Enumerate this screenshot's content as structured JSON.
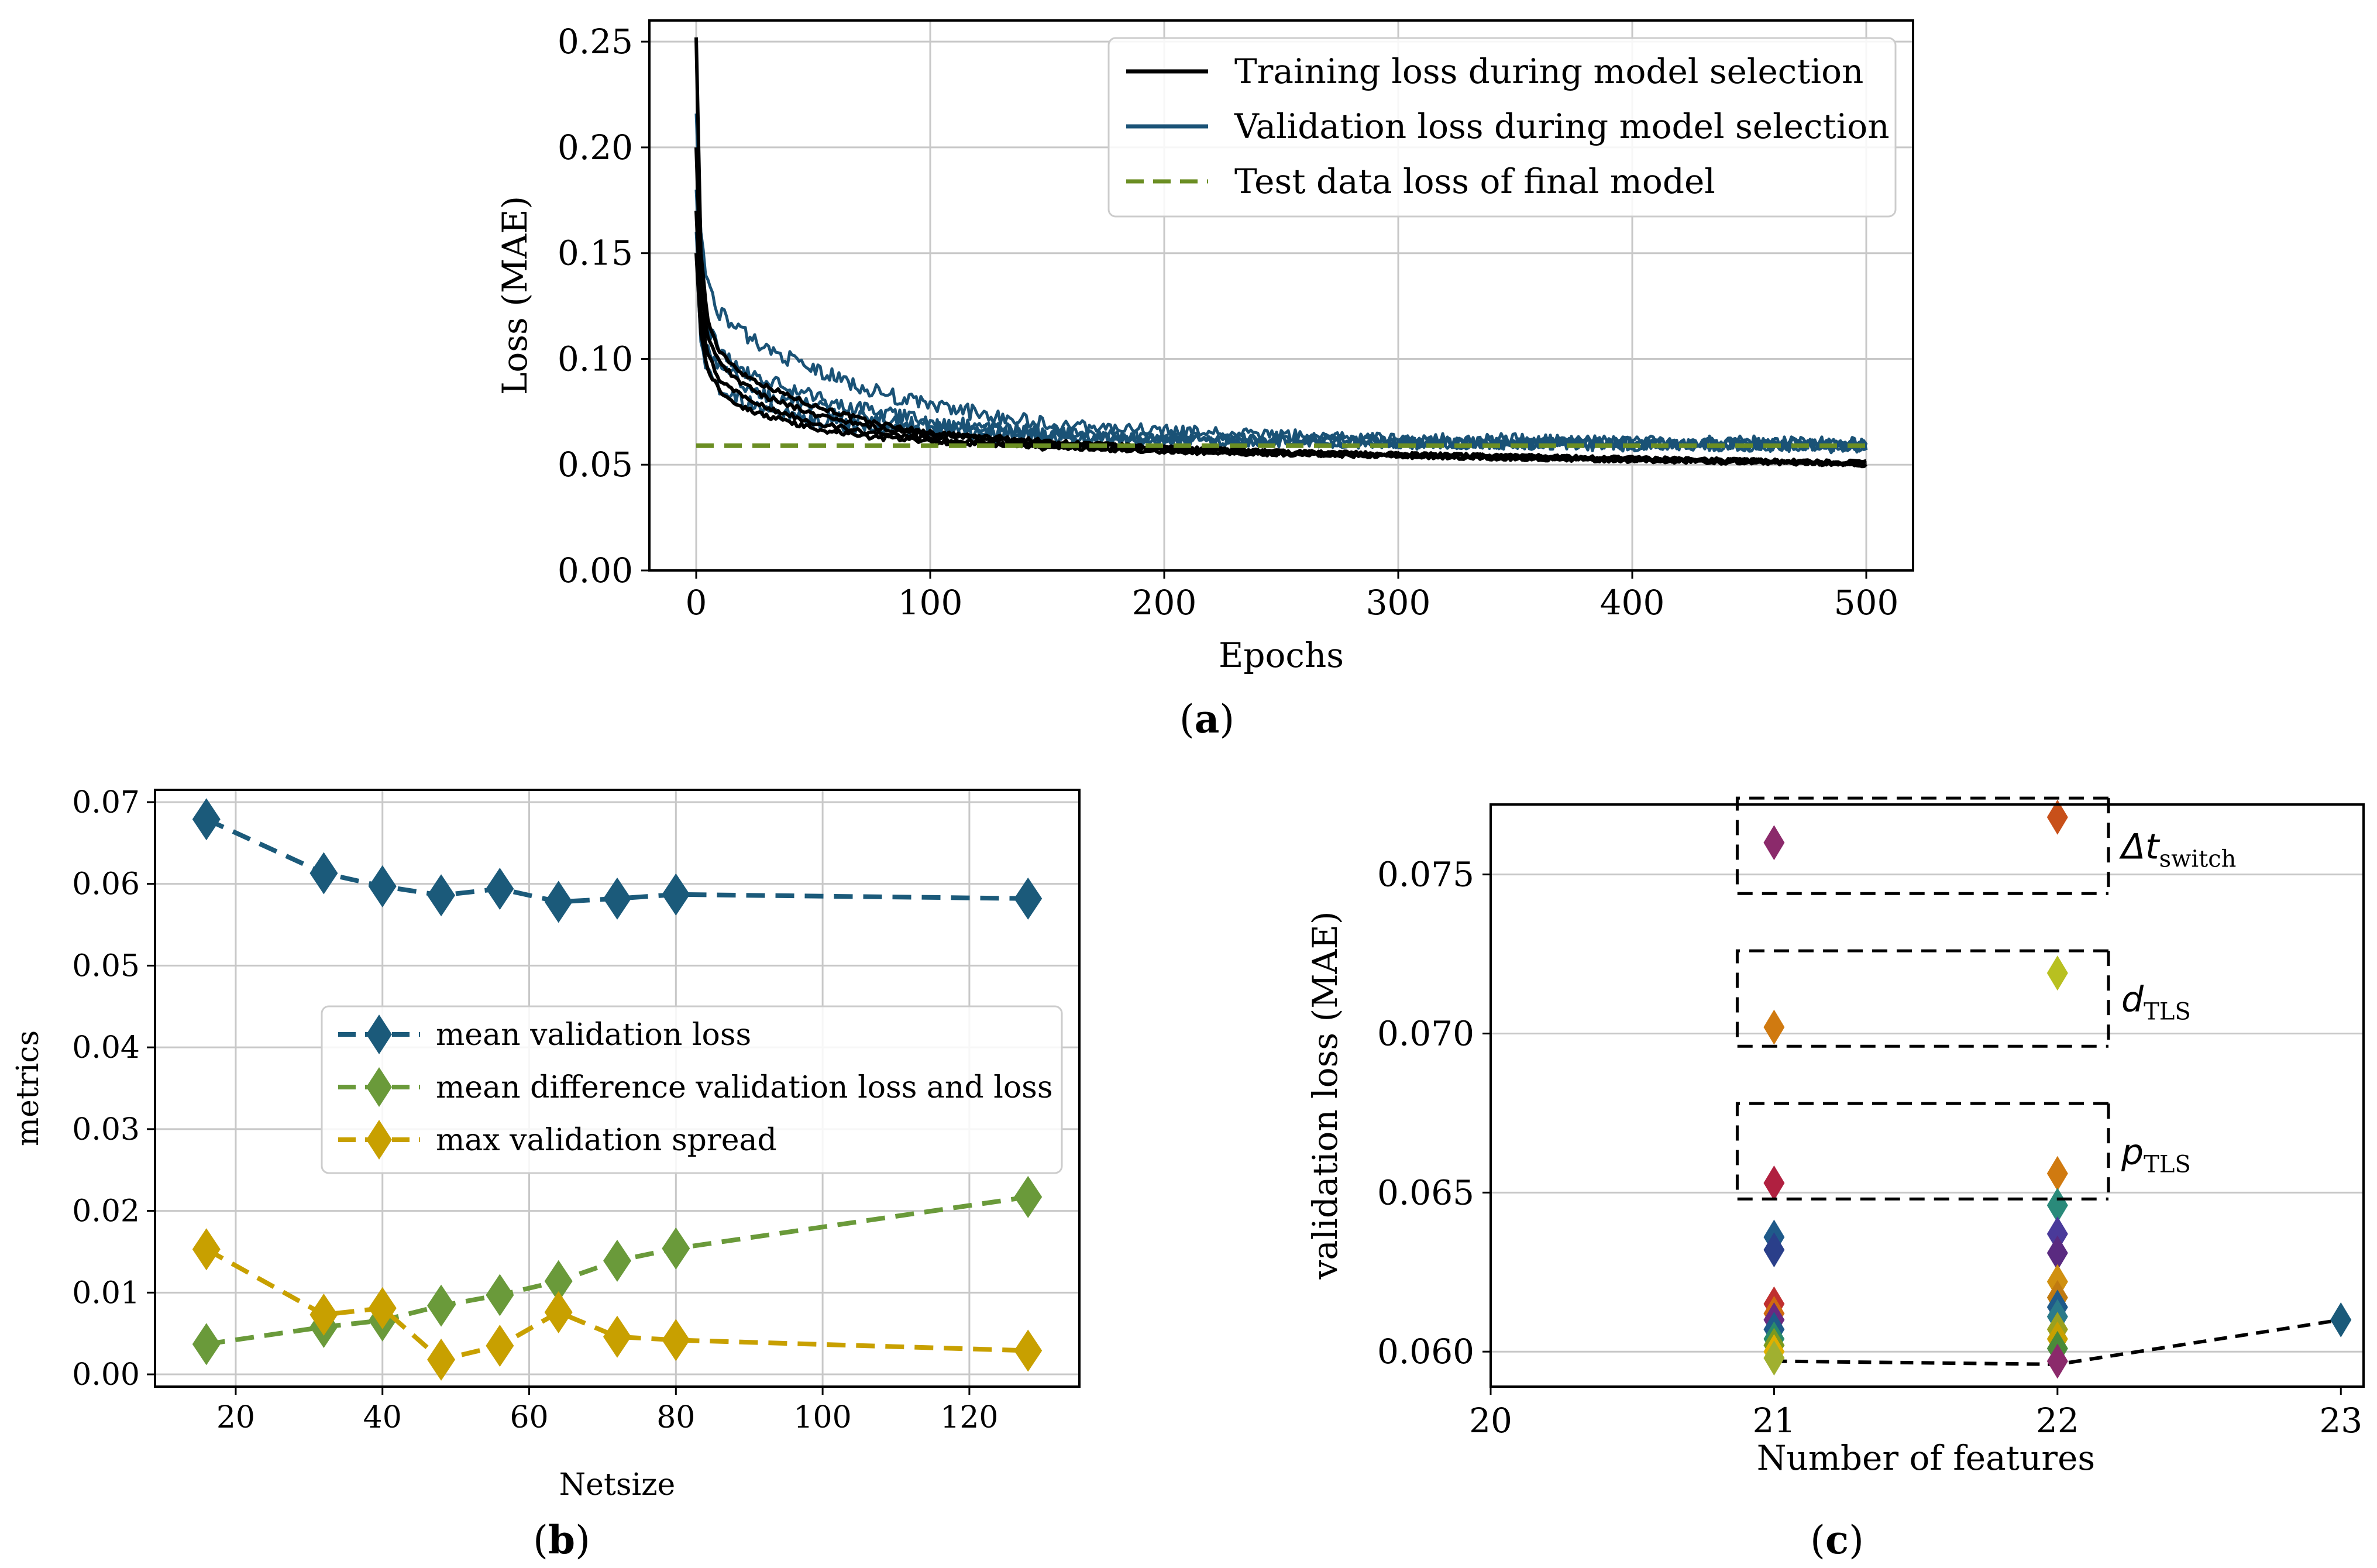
{
  "panels": {
    "a": {
      "caption": "(a)",
      "caption_letter": "a",
      "chart_data": {
        "type": "line",
        "title": "",
        "xlabel": "Epochs",
        "ylabel": "Loss (MAE)",
        "xlim": [
          -20,
          520
        ],
        "ylim": [
          0.0,
          0.26
        ],
        "xticks": [
          0,
          100,
          200,
          300,
          400,
          500
        ],
        "xtick_labels": [
          "0",
          "100",
          "200",
          "300",
          "400",
          "500"
        ],
        "yticks": [
          0.0,
          0.05,
          0.1,
          0.15,
          0.2,
          0.25
        ],
        "ytick_labels": [
          "0.00",
          "0.05",
          "0.10",
          "0.15",
          "0.20",
          "0.25"
        ],
        "grid": true,
        "legend_position": "top-right",
        "series": [
          {
            "name": "Training loss during model selection",
            "color": "#000000",
            "style": "solid",
            "runs": [
              {
                "x": [
                  0,
                  2,
                  5,
                  10,
                  20,
                  30,
                  50,
                  75,
                  100,
                  150,
                  200,
                  250,
                  300,
                  350,
                  400,
                  450,
                  500
                ],
                "y": [
                  0.252,
                  0.15,
                  0.118,
                  0.103,
                  0.093,
                  0.087,
                  0.078,
                  0.07,
                  0.065,
                  0.061,
                  0.058,
                  0.056,
                  0.055,
                  0.054,
                  0.053,
                  0.052,
                  0.05
                ]
              },
              {
                "x": [
                  0,
                  2,
                  5,
                  10,
                  20,
                  30,
                  50,
                  75,
                  100,
                  150,
                  200,
                  250,
                  300,
                  350,
                  400,
                  450,
                  500
                ],
                "y": [
                  0.2,
                  0.135,
                  0.11,
                  0.098,
                  0.088,
                  0.082,
                  0.074,
                  0.068,
                  0.064,
                  0.06,
                  0.058,
                  0.056,
                  0.055,
                  0.054,
                  0.053,
                  0.052,
                  0.051
                ]
              },
              {
                "x": [
                  0,
                  2,
                  5,
                  10,
                  20,
                  30,
                  50,
                  75,
                  100,
                  150,
                  200,
                  250,
                  300,
                  350,
                  400,
                  450,
                  500
                ],
                "y": [
                  0.17,
                  0.122,
                  0.102,
                  0.09,
                  0.082,
                  0.077,
                  0.07,
                  0.065,
                  0.062,
                  0.059,
                  0.057,
                  0.055,
                  0.054,
                  0.053,
                  0.052,
                  0.052,
                  0.05
                ]
              },
              {
                "x": [
                  0,
                  2,
                  5,
                  10,
                  20,
                  30,
                  50,
                  75,
                  100,
                  150,
                  200,
                  250,
                  300,
                  350,
                  400,
                  450,
                  500
                ],
                "y": [
                  0.15,
                  0.112,
                  0.095,
                  0.085,
                  0.077,
                  0.073,
                  0.067,
                  0.063,
                  0.061,
                  0.058,
                  0.056,
                  0.055,
                  0.054,
                  0.053,
                  0.052,
                  0.051,
                  0.05
                ]
              }
            ]
          },
          {
            "name": "Validation loss during model selection",
            "color": "#1a5276",
            "style": "solid",
            "runs": [
              {
                "x": [
                  0,
                  2,
                  5,
                  10,
                  20,
                  30,
                  50,
                  75,
                  100,
                  150,
                  200,
                  250,
                  300,
                  350,
                  400,
                  450,
                  500
                ],
                "y": [
                  0.216,
                  0.16,
                  0.135,
                  0.122,
                  0.112,
                  0.105,
                  0.095,
                  0.085,
                  0.078,
                  0.069,
                  0.066,
                  0.064,
                  0.062,
                  0.062,
                  0.061,
                  0.061,
                  0.06
                ]
              },
              {
                "x": [
                  0,
                  2,
                  5,
                  10,
                  20,
                  30,
                  50,
                  75,
                  100,
                  150,
                  200,
                  250,
                  300,
                  350,
                  400,
                  450,
                  500
                ],
                "y": [
                  0.18,
                  0.135,
                  0.115,
                  0.104,
                  0.095,
                  0.09,
                  0.082,
                  0.075,
                  0.07,
                  0.065,
                  0.063,
                  0.062,
                  0.061,
                  0.06,
                  0.06,
                  0.06,
                  0.059
                ]
              },
              {
                "x": [
                  0,
                  2,
                  5,
                  10,
                  20,
                  30,
                  50,
                  75,
                  100,
                  150,
                  200,
                  250,
                  300,
                  350,
                  400,
                  450,
                  500
                ],
                "y": [
                  0.16,
                  0.12,
                  0.105,
                  0.097,
                  0.088,
                  0.083,
                  0.077,
                  0.072,
                  0.068,
                  0.064,
                  0.062,
                  0.061,
                  0.06,
                  0.06,
                  0.06,
                  0.059,
                  0.059
                ]
              },
              {
                "x": [
                  0,
                  2,
                  5,
                  10,
                  20,
                  30,
                  50,
                  75,
                  100,
                  150,
                  200,
                  250,
                  300,
                  350,
                  400,
                  450,
                  500
                ],
                "y": [
                  0.15,
                  0.108,
                  0.095,
                  0.087,
                  0.08,
                  0.076,
                  0.071,
                  0.068,
                  0.066,
                  0.063,
                  0.062,
                  0.061,
                  0.06,
                  0.06,
                  0.059,
                  0.059,
                  0.058
                ]
              }
            ]
          },
          {
            "name": "Test data loss of final model",
            "color": "#6b8e23",
            "style": "dashed",
            "runs": [
              {
                "x": [
                  0,
                  500
                ],
                "y": [
                  0.059,
                  0.059
                ]
              }
            ]
          }
        ]
      }
    },
    "b": {
      "caption": "(b)",
      "caption_letter": "b",
      "chart_data": {
        "type": "line",
        "title": "",
        "xlabel": "Netsize",
        "ylabel": "metrics",
        "xlim": [
          9,
          135
        ],
        "ylim": [
          -0.0015,
          0.0715
        ],
        "xticks": [
          20,
          40,
          60,
          80,
          100,
          120
        ],
        "xtick_labels": [
          "20",
          "40",
          "60",
          "80",
          "100",
          "120"
        ],
        "yticks": [
          0.0,
          0.01,
          0.02,
          0.03,
          0.04,
          0.05,
          0.06,
          0.07
        ],
        "ytick_labels": [
          "0.00",
          "0.01",
          "0.02",
          "0.03",
          "0.04",
          "0.05",
          "0.06",
          "0.07"
        ],
        "grid": true,
        "legend_position": "center-right",
        "x": [
          16,
          32,
          40,
          48,
          56,
          64,
          72,
          80,
          128
        ],
        "series": [
          {
            "name": "mean validation loss",
            "color": "#1b5a7a",
            "values": [
              0.0679,
              0.0613,
              0.0597,
              0.0586,
              0.0594,
              0.0578,
              0.0582,
              0.0587,
              0.0582
            ]
          },
          {
            "name": "mean difference validation loss and loss",
            "color": "#6a9a3a",
            "values": [
              0.0037,
              0.0058,
              0.0066,
              0.0084,
              0.0097,
              0.0114,
              0.0139,
              0.0154,
              0.0217
            ]
          },
          {
            "name": "max validation spread",
            "color": "#c8a000",
            "values": [
              0.0153,
              0.0073,
              0.0081,
              0.0018,
              0.0035,
              0.0076,
              0.0046,
              0.0042,
              0.0029
            ]
          }
        ]
      }
    },
    "c": {
      "caption": "(c)",
      "caption_letter": "c",
      "chart_data": {
        "type": "scatter",
        "title": "",
        "xlabel": "Number of features",
        "ylabel": "validation loss (MAE)",
        "xlim": [
          20,
          23.08
        ],
        "ylim": [
          0.0589,
          0.0772
        ],
        "xticks": [
          20,
          21,
          22,
          23
        ],
        "xtick_labels": [
          "20",
          "21",
          "22",
          "23"
        ],
        "yticks": [
          0.06,
          0.065,
          0.07,
          0.075
        ],
        "ytick_labels": [
          "0.060",
          "0.065",
          "0.070",
          "0.075"
        ],
        "grid": "horizontal",
        "points": [
          {
            "x": 21,
            "y": 0.076,
            "color": "#8b2a6b"
          },
          {
            "x": 21,
            "y": 0.0702,
            "color": "#d07a10"
          },
          {
            "x": 21,
            "y": 0.0653,
            "color": "#b02040"
          },
          {
            "x": 21,
            "y": 0.0636,
            "color": "#1f5a8a"
          },
          {
            "x": 21,
            "y": 0.0632,
            "color": "#2a3f8a"
          },
          {
            "x": 21,
            "y": 0.0615,
            "color": "#c03030"
          },
          {
            "x": 21,
            "y": 0.0612,
            "color": "#d06a10"
          },
          {
            "x": 21,
            "y": 0.061,
            "color": "#6a2a80"
          },
          {
            "x": 21,
            "y": 0.0607,
            "color": "#1f5a8a"
          },
          {
            "x": 21,
            "y": 0.0604,
            "color": "#2a8a6a"
          },
          {
            "x": 21,
            "y": 0.0602,
            "color": "#7a9a20"
          },
          {
            "x": 21,
            "y": 0.06,
            "color": "#e0b000"
          },
          {
            "x": 21,
            "y": 0.0598,
            "color": "#a0b030"
          },
          {
            "x": 22,
            "y": 0.0768,
            "color": "#c8501a"
          },
          {
            "x": 22,
            "y": 0.0719,
            "color": "#b8c020"
          },
          {
            "x": 22,
            "y": 0.0656,
            "color": "#d07a10"
          },
          {
            "x": 22,
            "y": 0.0646,
            "color": "#2a8a7a"
          },
          {
            "x": 22,
            "y": 0.0637,
            "color": "#4a3a9a"
          },
          {
            "x": 22,
            "y": 0.0631,
            "color": "#5a2a80"
          },
          {
            "x": 22,
            "y": 0.0622,
            "color": "#d09010"
          },
          {
            "x": 22,
            "y": 0.0617,
            "color": "#c07a10"
          },
          {
            "x": 22,
            "y": 0.0614,
            "color": "#1f5a8a"
          },
          {
            "x": 22,
            "y": 0.0611,
            "color": "#2a7a8a"
          },
          {
            "x": 22,
            "y": 0.0607,
            "color": "#9aa020"
          },
          {
            "x": 22,
            "y": 0.0604,
            "color": "#c8a000"
          },
          {
            "x": 22,
            "y": 0.0601,
            "color": "#4a8a3a"
          },
          {
            "x": 22,
            "y": 0.0597,
            "color": "#8b2a6b"
          },
          {
            "x": 23,
            "y": 0.061,
            "color": "#1b5a7a"
          }
        ],
        "minimum_line": {
          "x": [
            21,
            22,
            23
          ],
          "y": [
            0.0597,
            0.0596,
            0.061
          ]
        },
        "groups": [
          {
            "label": "Δt",
            "subscript": "switch",
            "ymin": 0.0744,
            "ymax": 0.0774
          },
          {
            "label": "d",
            "subscript": "TLS",
            "ymin": 0.0696,
            "ymax": 0.0726
          },
          {
            "label": "p",
            "subscript": "TLS",
            "ymin": 0.0648,
            "ymax": 0.0678
          }
        ]
      }
    }
  }
}
